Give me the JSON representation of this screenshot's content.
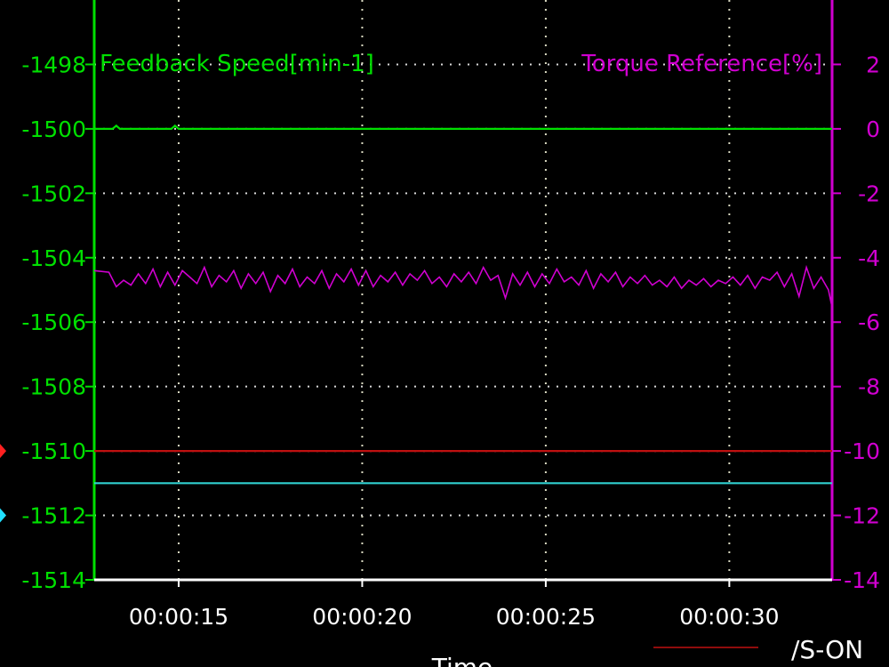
{
  "chart_data": {
    "type": "line",
    "left_axis": {
      "title": "Feedback Speed[min-1]",
      "ticks": [
        -1498,
        -1500,
        -1502,
        -1504,
        -1506,
        -1508,
        -1510,
        -1512,
        -1514
      ],
      "ylim": [
        -1514,
        -1496
      ],
      "color": "#00e000"
    },
    "right_axis": {
      "title": "Torque Reference[%]",
      "ticks": [
        2,
        0,
        -2,
        -4,
        -6,
        -8,
        -10,
        -12,
        -14
      ],
      "ylim": [
        -14,
        4
      ],
      "color": "#d000d0"
    },
    "x_axis": {
      "label": "Time",
      "tick_labels": [
        "00:00:15",
        "00:00:20",
        "00:00:25",
        "00:00:30"
      ],
      "tick_seconds": [
        14.8,
        19.8,
        24.8,
        29.8
      ],
      "xlim": [
        12.5,
        32.6
      ]
    },
    "series": [
      {
        "name": "Feedback Speed[min-1]",
        "axis": "left",
        "color": "#00e000",
        "points": [
          [
            12.5,
            -1500
          ],
          [
            13.0,
            -1500
          ],
          [
            13.1,
            -1499.9
          ],
          [
            13.2,
            -1500
          ],
          [
            14.6,
            -1500
          ],
          [
            14.7,
            -1499.9
          ],
          [
            14.8,
            -1500
          ],
          [
            32.6,
            -1500
          ]
        ]
      },
      {
        "name": "Torque Reference[%]",
        "axis": "right",
        "color": "#d000d0",
        "points": [
          [
            12.5,
            -4.4
          ],
          [
            12.9,
            -4.45
          ],
          [
            13.1,
            -4.9
          ],
          [
            13.3,
            -4.7
          ],
          [
            13.5,
            -4.85
          ],
          [
            13.7,
            -4.5
          ],
          [
            13.9,
            -4.8
          ],
          [
            14.1,
            -4.35
          ],
          [
            14.3,
            -4.9
          ],
          [
            14.5,
            -4.45
          ],
          [
            14.7,
            -4.85
          ],
          [
            14.9,
            -4.4
          ],
          [
            15.1,
            -4.6
          ],
          [
            15.3,
            -4.8
          ],
          [
            15.5,
            -4.3
          ],
          [
            15.7,
            -4.9
          ],
          [
            15.9,
            -4.55
          ],
          [
            16.1,
            -4.75
          ],
          [
            16.3,
            -4.4
          ],
          [
            16.5,
            -4.95
          ],
          [
            16.7,
            -4.5
          ],
          [
            16.9,
            -4.8
          ],
          [
            17.1,
            -4.45
          ],
          [
            17.3,
            -5.05
          ],
          [
            17.5,
            -4.55
          ],
          [
            17.7,
            -4.8
          ],
          [
            17.9,
            -4.35
          ],
          [
            18.1,
            -4.9
          ],
          [
            18.3,
            -4.6
          ],
          [
            18.5,
            -4.8
          ],
          [
            18.7,
            -4.4
          ],
          [
            18.9,
            -4.95
          ],
          [
            19.1,
            -4.5
          ],
          [
            19.3,
            -4.75
          ],
          [
            19.5,
            -4.35
          ],
          [
            19.7,
            -4.85
          ],
          [
            19.9,
            -4.4
          ],
          [
            20.1,
            -4.9
          ],
          [
            20.3,
            -4.55
          ],
          [
            20.5,
            -4.75
          ],
          [
            20.7,
            -4.45
          ],
          [
            20.9,
            -4.85
          ],
          [
            21.1,
            -4.5
          ],
          [
            21.3,
            -4.7
          ],
          [
            21.5,
            -4.4
          ],
          [
            21.7,
            -4.8
          ],
          [
            21.9,
            -4.6
          ],
          [
            22.1,
            -4.9
          ],
          [
            22.3,
            -4.5
          ],
          [
            22.5,
            -4.75
          ],
          [
            22.7,
            -4.45
          ],
          [
            22.9,
            -4.8
          ],
          [
            23.1,
            -4.3
          ],
          [
            23.3,
            -4.7
          ],
          [
            23.5,
            -4.55
          ],
          [
            23.7,
            -5.25
          ],
          [
            23.9,
            -4.5
          ],
          [
            24.1,
            -4.85
          ],
          [
            24.3,
            -4.45
          ],
          [
            24.5,
            -4.9
          ],
          [
            24.7,
            -4.5
          ],
          [
            24.9,
            -4.8
          ],
          [
            25.1,
            -4.35
          ],
          [
            25.3,
            -4.75
          ],
          [
            25.5,
            -4.6
          ],
          [
            25.7,
            -4.85
          ],
          [
            25.9,
            -4.4
          ],
          [
            26.1,
            -4.95
          ],
          [
            26.3,
            -4.5
          ],
          [
            26.5,
            -4.75
          ],
          [
            26.7,
            -4.45
          ],
          [
            26.9,
            -4.9
          ],
          [
            27.1,
            -4.6
          ],
          [
            27.3,
            -4.8
          ],
          [
            27.5,
            -4.55
          ],
          [
            27.7,
            -4.85
          ],
          [
            27.9,
            -4.7
          ],
          [
            28.1,
            -4.9
          ],
          [
            28.3,
            -4.6
          ],
          [
            28.5,
            -4.95
          ],
          [
            28.7,
            -4.7
          ],
          [
            28.9,
            -4.85
          ],
          [
            29.1,
            -4.65
          ],
          [
            29.3,
            -4.9
          ],
          [
            29.5,
            -4.7
          ],
          [
            29.7,
            -4.8
          ],
          [
            29.9,
            -4.6
          ],
          [
            30.1,
            -4.85
          ],
          [
            30.3,
            -4.55
          ],
          [
            30.5,
            -4.95
          ],
          [
            30.7,
            -4.6
          ],
          [
            30.9,
            -4.7
          ],
          [
            31.1,
            -4.45
          ],
          [
            31.3,
            -4.9
          ],
          [
            31.5,
            -4.5
          ],
          [
            31.7,
            -5.2
          ],
          [
            31.9,
            -4.3
          ],
          [
            32.1,
            -4.95
          ],
          [
            32.3,
            -4.6
          ],
          [
            32.5,
            -5.0
          ],
          [
            32.6,
            -5.55
          ]
        ]
      },
      {
        "name": "/S-ON",
        "axis": "left",
        "color": "#c01010",
        "points": [
          [
            12.5,
            -1510
          ],
          [
            32.6,
            -1510
          ]
        ]
      },
      {
        "name": "",
        "axis": "left",
        "color": "#30d0d0",
        "points": [
          [
            12.5,
            -1511
          ],
          [
            32.6,
            -1511
          ]
        ]
      }
    ],
    "markers": [
      {
        "axis": "left",
        "value": -1510,
        "color": "#ff2020"
      },
      {
        "axis": "left",
        "value": -1512,
        "color": "#20e0ff"
      }
    ],
    "legend": {
      "label": "/S-ON",
      "color": "#c01010",
      "placement": "bottom-right"
    },
    "grid": true
  }
}
